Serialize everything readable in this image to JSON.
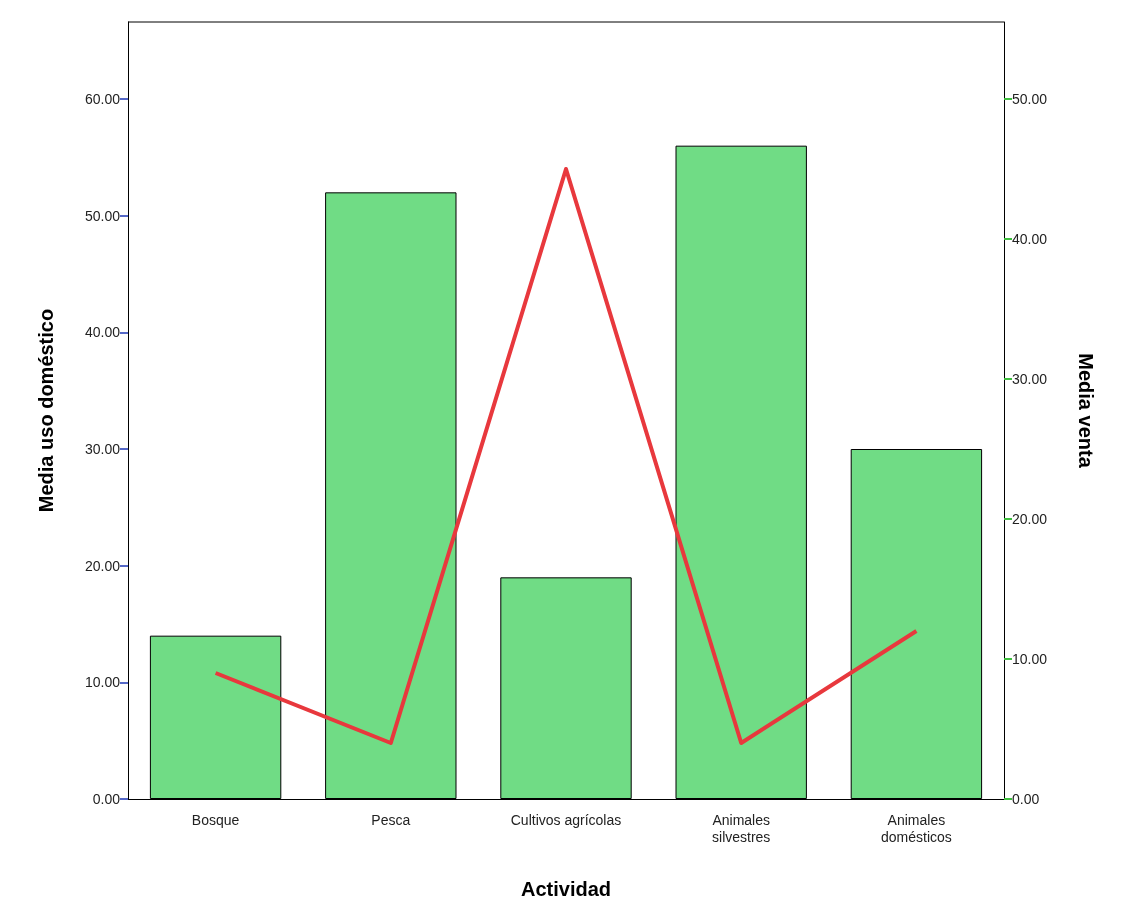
{
  "chart_data": {
    "type": "bar",
    "xlabel": "Actividad",
    "ylabel": "Media uso doméstico",
    "y2label": "Media venta",
    "categories": [
      "Bosque",
      "Pesca",
      "Cultivos agrícolas",
      "Animales\nsilvestres",
      "Animales\ndomésticos"
    ],
    "series": [
      {
        "color": "#70dc85",
        "values": [
          14,
          52,
          19,
          56,
          30
        ]
      },
      {
        "type": "line",
        "axis": "y2",
        "color": "#e8383d",
        "values": [
          9,
          4,
          45,
          4,
          12
        ]
      }
    ],
    "ylim": [
      0,
      66.6
    ],
    "yticks": [
      {
        "value": 0,
        "label": "0.00"
      },
      {
        "value": 10,
        "label": "10.00"
      },
      {
        "value": 20,
        "label": "20.00"
      },
      {
        "value": 30,
        "label": "30.00"
      },
      {
        "value": 40,
        "label": "40.00"
      },
      {
        "value": 50,
        "label": "50.00"
      },
      {
        "value": 60,
        "label": "60.00"
      }
    ],
    "y2lim": [
      0,
      55.5
    ],
    "y2ticks": [
      {
        "value": 0,
        "label": "0.00"
      },
      {
        "value": 10,
        "label": "10.00"
      },
      {
        "value": 20,
        "label": "20.00"
      },
      {
        "value": 30,
        "label": "30.00"
      },
      {
        "value": 40,
        "label": "40.00"
      },
      {
        "value": 50,
        "label": "50.00"
      }
    ],
    "grid": false,
    "marker": "none",
    "line_style": "solid"
  }
}
